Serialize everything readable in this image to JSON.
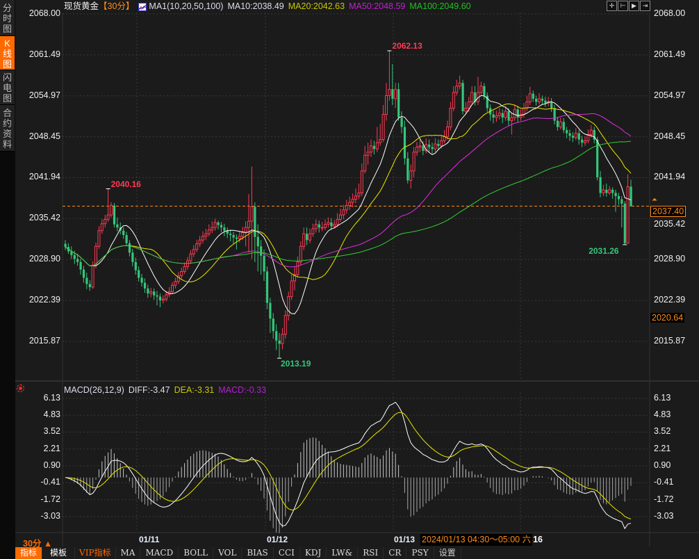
{
  "sidebar": {
    "tabs": [
      {
        "label": "分时图",
        "active": false
      },
      {
        "label": "K线图",
        "active": true
      },
      {
        "label": "闪电图",
        "active": false
      },
      {
        "label": "合约资料",
        "active": false
      }
    ]
  },
  "header": {
    "symbol": "现货黄金",
    "period": "【30分】",
    "indicator_icon": "ma-chart-icon",
    "ma_params": "MA1(10,20,50,100)",
    "ma10": "MA10:2038.49",
    "ma20": "MA20:2042.63",
    "ma50": "MA50:2048.59",
    "ma100": "MA100:2049.60",
    "tools": [
      "crosshair-icon",
      "zoom-fit-icon",
      "play-forward-icon",
      "move-right-icon"
    ]
  },
  "colors": {
    "up": "#ff3b54",
    "down": "#35c77b",
    "ma10": "#ffffff",
    "ma20": "#e8e800",
    "ma50": "#e030e0",
    "ma100": "#30d030",
    "accent": "#ff8c1a",
    "grid": "#3a3a3a",
    "dif": "#ffffff",
    "dea": "#e8e800"
  },
  "price_axis": {
    "ticks": [
      "2068.00",
      "2061.49",
      "2054.97",
      "2048.45",
      "2041.94",
      "2035.42",
      "2028.90",
      "2022.39",
      "2015.87"
    ],
    "current_price": "2037.40",
    "cursor_price": "2020.64"
  },
  "annotations": [
    {
      "text": "2040.16",
      "type": "high",
      "color": "#ff3b54"
    },
    {
      "text": "2062.13",
      "type": "high",
      "color": "#ff3b54"
    },
    {
      "text": "2013.19",
      "type": "low",
      "color": "#35c77b"
    },
    {
      "text": "2031.26",
      "type": "low",
      "color": "#35c77b"
    }
  ],
  "macd": {
    "title": "MACD(26,12,9)",
    "diff": "DIFF:-3.47",
    "dea": "DEA:-3.31",
    "macd": "MACD:-0.33",
    "ticks": [
      "6.13",
      "4.83",
      "3.52",
      "2.21",
      "0.90",
      "-0.41",
      "-1.72",
      "-3.03"
    ]
  },
  "time_axis": {
    "period_label": "30分 ▲",
    "dates": [
      "01/11",
      "01/12",
      "01/13"
    ],
    "cursor_time": "2024/01/13 04:30～05:00 六",
    "cursor_suffix": "16"
  },
  "toolbar": {
    "items": [
      "指标",
      "模板",
      "VIP指标",
      "MA",
      "MACD",
      "BOLL",
      "VOL",
      "BIAS",
      "CCI",
      "KDJ",
      "LW&",
      "RSI",
      "CR",
      "PSY",
      "设置"
    ]
  },
  "chart_data": {
    "type": "candlestick",
    "fields": [
      "open",
      "high",
      "low",
      "close"
    ],
    "indicators": [
      "MA10",
      "MA20",
      "MA50",
      "MA100",
      "MACD(26,12,9)"
    ],
    "price_range": [
      2015.87,
      2068.0
    ],
    "candles": [
      [
        2031.4,
        2032.0,
        2030.4,
        2030.9
      ],
      [
        2030.9,
        2031.5,
        2029.8,
        2030.2
      ],
      [
        2030.2,
        2031.0,
        2029.0,
        2029.6
      ],
      [
        2029.6,
        2030.3,
        2028.2,
        2029.0
      ],
      [
        2029.0,
        2029.8,
        2027.9,
        2028.5
      ],
      [
        2028.5,
        2029.0,
        2026.5,
        2027.3
      ],
      [
        2027.3,
        2027.9,
        2025.2,
        2026.0
      ],
      [
        2026.0,
        2026.8,
        2024.2,
        2025.0
      ],
      [
        2025.0,
        2025.6,
        2023.9,
        2024.5
      ],
      [
        2024.5,
        2028.6,
        2024.2,
        2028.0
      ],
      [
        2028.0,
        2031.6,
        2027.5,
        2031.0
      ],
      [
        2031.0,
        2034.2,
        2030.6,
        2033.5
      ],
      [
        2033.5,
        2035.3,
        2033.0,
        2034.6
      ],
      [
        2034.6,
        2036.0,
        2034.0,
        2035.3
      ],
      [
        2035.3,
        2040.16,
        2034.9,
        2036.0
      ],
      [
        2036.0,
        2038.0,
        2035.6,
        2037.5
      ],
      [
        2037.5,
        2037.9,
        2034.0,
        2034.5
      ],
      [
        2034.5,
        2035.6,
        2033.4,
        2034.0
      ],
      [
        2034.0,
        2034.8,
        2032.9,
        2033.5
      ],
      [
        2033.5,
        2034.0,
        2032.2,
        2032.8
      ],
      [
        2032.8,
        2033.3,
        2031.0,
        2031.5
      ],
      [
        2031.5,
        2032.0,
        2029.4,
        2030.0
      ],
      [
        2030.0,
        2030.6,
        2027.8,
        2028.5
      ],
      [
        2028.5,
        2029.2,
        2026.5,
        2027.2
      ],
      [
        2027.2,
        2027.8,
        2025.4,
        2026.0
      ],
      [
        2026.0,
        2026.6,
        2024.6,
        2025.2
      ],
      [
        2025.2,
        2025.9,
        2023.6,
        2024.3
      ],
      [
        2024.3,
        2024.9,
        2022.8,
        2023.5
      ],
      [
        2023.5,
        2024.4,
        2022.9,
        2023.8
      ],
      [
        2023.8,
        2024.3,
        2022.5,
        2023.2
      ],
      [
        2023.2,
        2023.9,
        2021.6,
        2023.0
      ],
      [
        2023.0,
        2023.5,
        2021.3,
        2022.4
      ],
      [
        2022.4,
        2023.2,
        2021.9,
        2022.6
      ],
      [
        2022.6,
        2023.9,
        2022.2,
        2023.3
      ],
      [
        2023.3,
        2024.5,
        2022.9,
        2023.8
      ],
      [
        2023.8,
        2025.3,
        2023.4,
        2024.8
      ],
      [
        2024.8,
        2026.0,
        2024.3,
        2025.4
      ],
      [
        2025.4,
        2026.9,
        2025.0,
        2026.3
      ],
      [
        2026.3,
        2027.6,
        2025.8,
        2027.0
      ],
      [
        2027.0,
        2028.4,
        2026.6,
        2027.8
      ],
      [
        2027.8,
        2029.3,
        2027.3,
        2028.7
      ],
      [
        2028.7,
        2030.4,
        2028.2,
        2029.8
      ],
      [
        2029.8,
        2031.2,
        2029.3,
        2030.5
      ],
      [
        2030.5,
        2032.0,
        2030.1,
        2031.4
      ],
      [
        2031.4,
        2032.7,
        2030.9,
        2032.0
      ],
      [
        2032.0,
        2033.4,
        2031.5,
        2032.6
      ],
      [
        2032.6,
        2033.8,
        2032.0,
        2033.0
      ],
      [
        2033.0,
        2034.5,
        2032.6,
        2033.6
      ],
      [
        2033.6,
        2035.0,
        2033.1,
        2034.0
      ],
      [
        2034.0,
        2035.4,
        2033.5,
        2034.8
      ],
      [
        2034.8,
        2035.1,
        2033.7,
        2034.4
      ],
      [
        2034.4,
        2034.9,
        2033.3,
        2034.0
      ],
      [
        2034.0,
        2034.6,
        2032.6,
        2033.5
      ],
      [
        2033.5,
        2034.0,
        2032.3,
        2033.0
      ],
      [
        2033.0,
        2033.6,
        2031.8,
        2032.8
      ],
      [
        2032.8,
        2033.3,
        2031.4,
        2032.4
      ],
      [
        2032.4,
        2032.9,
        2030.5,
        2032.2
      ],
      [
        2032.2,
        2033.5,
        2031.6,
        2032.6
      ],
      [
        2032.6,
        2034.1,
        2032.0,
        2033.2
      ],
      [
        2033.2,
        2035.0,
        2031.0,
        2034.0
      ],
      [
        2034.0,
        2039.3,
        2030.0,
        2035.0
      ],
      [
        2035.0,
        2043.7,
        2029.0,
        2037.3
      ],
      [
        2037.3,
        2038.0,
        2028.5,
        2032.5
      ],
      [
        2032.5,
        2034.5,
        2027.0,
        2031.0
      ],
      [
        2031.0,
        2032.0,
        2026.5,
        2029.5
      ],
      [
        2029.5,
        2030.5,
        2025.5,
        2027.0
      ],
      [
        2027.0,
        2027.8,
        2021.0,
        2022.0
      ],
      [
        2022.0,
        2022.8,
        2017.2,
        2019.5
      ],
      [
        2019.5,
        2020.4,
        2016.3,
        2017.5
      ],
      [
        2017.5,
        2018.6,
        2014.5,
        2016.0
      ],
      [
        2016.0,
        2017.2,
        2013.19,
        2015.5
      ],
      [
        2015.5,
        2018.0,
        2014.6,
        2017.0
      ],
      [
        2017.0,
        2020.8,
        2016.3,
        2020.0
      ],
      [
        2020.0,
        2023.8,
        2019.2,
        2023.0
      ],
      [
        2023.0,
        2026.5,
        2022.5,
        2025.5
      ],
      [
        2025.5,
        2027.8,
        2024.0,
        2026.5
      ],
      [
        2026.5,
        2029.4,
        2026.0,
        2028.5
      ],
      [
        2028.5,
        2031.8,
        2028.0,
        2031.0
      ],
      [
        2031.0,
        2034.0,
        2030.4,
        2033.0
      ],
      [
        2033.0,
        2034.0,
        2031.2,
        2032.0
      ],
      [
        2032.0,
        2033.8,
        2031.5,
        2033.0
      ],
      [
        2033.0,
        2034.6,
        2032.5,
        2033.8
      ],
      [
        2033.8,
        2035.3,
        2033.2,
        2034.5
      ],
      [
        2034.5,
        2035.1,
        2033.2,
        2034.0
      ],
      [
        2034.0,
        2034.9,
        2033.4,
        2034.0
      ],
      [
        2034.0,
        2035.3,
        2033.6,
        2034.5
      ],
      [
        2034.5,
        2035.6,
        2034.0,
        2034.8
      ],
      [
        2034.8,
        2035.5,
        2033.6,
        2034.2
      ],
      [
        2034.2,
        2035.2,
        2033.8,
        2034.5
      ],
      [
        2034.5,
        2036.3,
        2034.1,
        2035.3
      ],
      [
        2035.3,
        2037.0,
        2034.9,
        2036.0
      ],
      [
        2036.0,
        2037.6,
        2035.3,
        2036.8
      ],
      [
        2036.8,
        2038.4,
        2036.2,
        2037.5
      ],
      [
        2037.5,
        2038.9,
        2036.8,
        2038.0
      ],
      [
        2038.0,
        2039.4,
        2037.2,
        2038.5
      ],
      [
        2038.5,
        2040.2,
        2037.9,
        2039.0
      ],
      [
        2039.0,
        2041.0,
        2038.5,
        2039.5
      ],
      [
        2039.5,
        2044.2,
        2039.0,
        2043.0
      ],
      [
        2043.0,
        2047.0,
        2042.6,
        2045.5
      ],
      [
        2045.5,
        2047.5,
        2044.0,
        2046.0
      ],
      [
        2046.0,
        2048.0,
        2045.2,
        2047.0
      ],
      [
        2047.0,
        2047.8,
        2045.6,
        2046.5
      ],
      [
        2046.5,
        2050.0,
        2046.0,
        2047.5
      ],
      [
        2047.5,
        2050.5,
        2047.0,
        2048.0
      ],
      [
        2048.0,
        2053.5,
        2047.6,
        2052.0
      ],
      [
        2052.0,
        2057.0,
        2051.0,
        2055.0
      ],
      [
        2055.0,
        2062.13,
        2054.2,
        2056.0
      ],
      [
        2056.0,
        2060.0,
        2053.5,
        2054.5
      ],
      [
        2054.5,
        2057.0,
        2053.0,
        2056.0
      ],
      [
        2056.0,
        2057.0,
        2051.0,
        2051.5
      ],
      [
        2051.5,
        2052.5,
        2049.0,
        2050.0
      ],
      [
        2050.0,
        2051.0,
        2044.0,
        2045.0
      ],
      [
        2045.0,
        2046.0,
        2041.0,
        2041.5
      ],
      [
        2041.5,
        2044.0,
        2040.2,
        2043.0
      ],
      [
        2043.0,
        2046.8,
        2042.0,
        2046.0
      ],
      [
        2046.0,
        2047.6,
        2045.4,
        2046.8
      ],
      [
        2046.8,
        2048.0,
        2046.0,
        2047.0
      ],
      [
        2047.0,
        2047.7,
        2045.5,
        2046.2
      ],
      [
        2046.2,
        2048.2,
        2045.8,
        2047.2
      ],
      [
        2047.2,
        2048.0,
        2046.0,
        2046.8
      ],
      [
        2046.8,
        2047.5,
        2045.8,
        2046.5
      ],
      [
        2046.5,
        2048.2,
        2046.0,
        2047.3
      ],
      [
        2047.3,
        2048.0,
        2046.3,
        2047.0
      ],
      [
        2047.0,
        2048.6,
        2046.6,
        2047.8
      ],
      [
        2047.8,
        2049.5,
        2047.4,
        2048.5
      ],
      [
        2048.5,
        2051.0,
        2048.0,
        2050.0
      ],
      [
        2050.0,
        2054.0,
        2049.5,
        2053.0
      ],
      [
        2053.0,
        2056.5,
        2052.5,
        2055.5
      ],
      [
        2055.5,
        2057.5,
        2055.0,
        2056.5
      ],
      [
        2056.5,
        2058.2,
        2056.0,
        2057.0
      ],
      [
        2057.0,
        2057.5,
        2052.0,
        2052.5
      ],
      [
        2052.5,
        2054.0,
        2052.0,
        2053.0
      ],
      [
        2053.0,
        2054.8,
        2052.4,
        2054.0
      ],
      [
        2054.0,
        2056.5,
        2053.5,
        2055.5
      ],
      [
        2055.5,
        2056.5,
        2053.4,
        2054.0
      ],
      [
        2054.0,
        2058.0,
        2053.5,
        2055.5
      ],
      [
        2055.5,
        2057.2,
        2055.0,
        2056.5
      ],
      [
        2056.5,
        2057.0,
        2054.4,
        2055.0
      ],
      [
        2055.0,
        2055.5,
        2052.4,
        2053.0
      ],
      [
        2053.0,
        2053.6,
        2051.0,
        2052.0
      ],
      [
        2052.0,
        2052.6,
        2050.6,
        2051.5
      ],
      [
        2051.5,
        2052.6,
        2050.8,
        2051.8
      ],
      [
        2051.8,
        2053.0,
        2051.2,
        2052.2
      ],
      [
        2052.2,
        2052.8,
        2050.6,
        2051.5
      ],
      [
        2051.5,
        2053.3,
        2051.0,
        2052.5
      ],
      [
        2052.5,
        2053.0,
        2050.2,
        2051.0
      ],
      [
        2051.0,
        2052.3,
        2048.8,
        2051.5
      ],
      [
        2051.5,
        2053.6,
        2051.0,
        2052.8
      ],
      [
        2052.8,
        2053.4,
        2050.8,
        2051.5
      ],
      [
        2051.5,
        2052.8,
        2051.0,
        2052.0
      ],
      [
        2052.0,
        2053.8,
        2051.5,
        2053.0
      ],
      [
        2053.0,
        2055.0,
        2052.5,
        2054.0
      ],
      [
        2054.0,
        2056.4,
        2053.5,
        2055.3
      ],
      [
        2055.3,
        2055.8,
        2054.0,
        2054.5
      ],
      [
        2054.5,
        2055.0,
        2053.4,
        2054.0
      ],
      [
        2054.0,
        2055.4,
        2053.6,
        2054.5
      ],
      [
        2054.5,
        2055.0,
        2053.6,
        2054.2
      ],
      [
        2054.2,
        2054.8,
        2053.2,
        2053.8
      ],
      [
        2053.8,
        2054.8,
        2053.3,
        2054.0
      ],
      [
        2054.0,
        2054.6,
        2052.4,
        2053.0
      ],
      [
        2053.0,
        2053.5,
        2050.4,
        2051.0
      ],
      [
        2051.0,
        2051.6,
        2049.4,
        2050.0
      ],
      [
        2050.0,
        2051.5,
        2049.6,
        2050.8
      ],
      [
        2050.8,
        2051.4,
        2049.0,
        2049.5
      ],
      [
        2049.5,
        2050.0,
        2048.2,
        2049.0
      ],
      [
        2049.0,
        2049.6,
        2047.8,
        2048.6
      ],
      [
        2048.6,
        2049.2,
        2047.6,
        2048.3
      ],
      [
        2048.3,
        2049.8,
        2047.9,
        2049.0
      ],
      [
        2049.0,
        2049.5,
        2047.2,
        2048.0
      ],
      [
        2048.0,
        2048.6,
        2046.8,
        2047.5
      ],
      [
        2047.5,
        2048.5,
        2047.0,
        2047.8
      ],
      [
        2047.8,
        2049.6,
        2047.4,
        2048.8
      ],
      [
        2048.8,
        2050.3,
        2048.3,
        2049.5
      ],
      [
        2049.5,
        2050.0,
        2047.4,
        2048.0
      ],
      [
        2048.0,
        2048.4,
        2041.5,
        2042.0
      ],
      [
        2042.0,
        2043.0,
        2038.8,
        2039.5
      ],
      [
        2039.5,
        2040.8,
        2039.0,
        2040.0
      ],
      [
        2040.0,
        2041.0,
        2038.9,
        2039.5
      ],
      [
        2039.5,
        2040.6,
        2039.2,
        2040.0
      ],
      [
        2040.0,
        2040.4,
        2038.6,
        2039.5
      ],
      [
        2039.5,
        2040.0,
        2036.5,
        2039.0
      ],
      [
        2039.0,
        2039.5,
        2037.6,
        2038.5
      ],
      [
        2038.5,
        2039.0,
        2034.0,
        2037.8
      ],
      [
        2037.8,
        2038.2,
        2031.26,
        2031.5
      ],
      [
        2031.5,
        2042.5,
        2031.4,
        2040.5
      ],
      [
        2040.5,
        2041.6,
        2037.3,
        2037.4
      ]
    ]
  }
}
